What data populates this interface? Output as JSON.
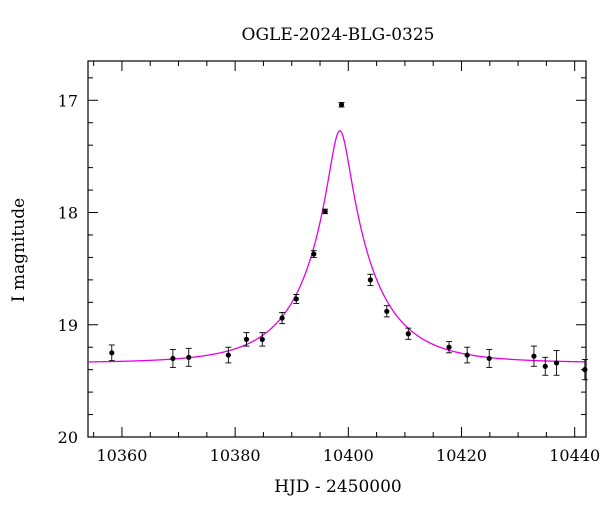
{
  "chart_data": {
    "type": "scatter",
    "title": "OGLE-2024-BLG-0325",
    "xlabel": "HJD - 2450000",
    "ylabel": "I magnitude",
    "xlim": [
      10354,
      10442
    ],
    "ylim": [
      20,
      16.65
    ],
    "y_inverted": true,
    "grid": false,
    "x_ticks": [
      10360,
      10380,
      10400,
      10420,
      10440
    ],
    "y_ticks": [
      17,
      18,
      19,
      20
    ],
    "series": [
      {
        "kind": "points_with_errors",
        "color": "#000000",
        "points": [
          {
            "x": 10358.2,
            "y": 19.25,
            "err": 0.07
          },
          {
            "x": 10369.0,
            "y": 19.3,
            "err": 0.08
          },
          {
            "x": 10371.8,
            "y": 19.29,
            "err": 0.08
          },
          {
            "x": 10378.8,
            "y": 19.27,
            "err": 0.07
          },
          {
            "x": 10382.0,
            "y": 19.13,
            "err": 0.06
          },
          {
            "x": 10384.8,
            "y": 19.13,
            "err": 0.06
          },
          {
            "x": 10388.3,
            "y": 18.94,
            "err": 0.05
          },
          {
            "x": 10390.8,
            "y": 18.77,
            "err": 0.04
          },
          {
            "x": 10393.9,
            "y": 18.37,
            "err": 0.03
          },
          {
            "x": 10395.9,
            "y": 17.99,
            "err": 0.02
          },
          {
            "x": 10398.8,
            "y": 17.04,
            "err": 0.02
          },
          {
            "x": 10403.9,
            "y": 18.6,
            "err": 0.05
          },
          {
            "x": 10406.8,
            "y": 18.88,
            "err": 0.05
          },
          {
            "x": 10410.6,
            "y": 19.08,
            "err": 0.05
          },
          {
            "x": 10417.8,
            "y": 19.2,
            "err": 0.05
          },
          {
            "x": 10421.0,
            "y": 19.27,
            "err": 0.07
          },
          {
            "x": 10424.9,
            "y": 19.3,
            "err": 0.08
          },
          {
            "x": 10432.8,
            "y": 19.28,
            "err": 0.09
          },
          {
            "x": 10434.8,
            "y": 19.37,
            "err": 0.08
          },
          {
            "x": 10436.8,
            "y": 19.34,
            "err": 0.11
          },
          {
            "x": 10441.8,
            "y": 19.4,
            "err": 0.09
          }
        ]
      },
      {
        "kind": "model_curve",
        "color": "#e600e6",
        "t0": 10398.5,
        "tE": 12,
        "u0": 0.15,
        "baseline_mag": 19.34
      }
    ]
  }
}
